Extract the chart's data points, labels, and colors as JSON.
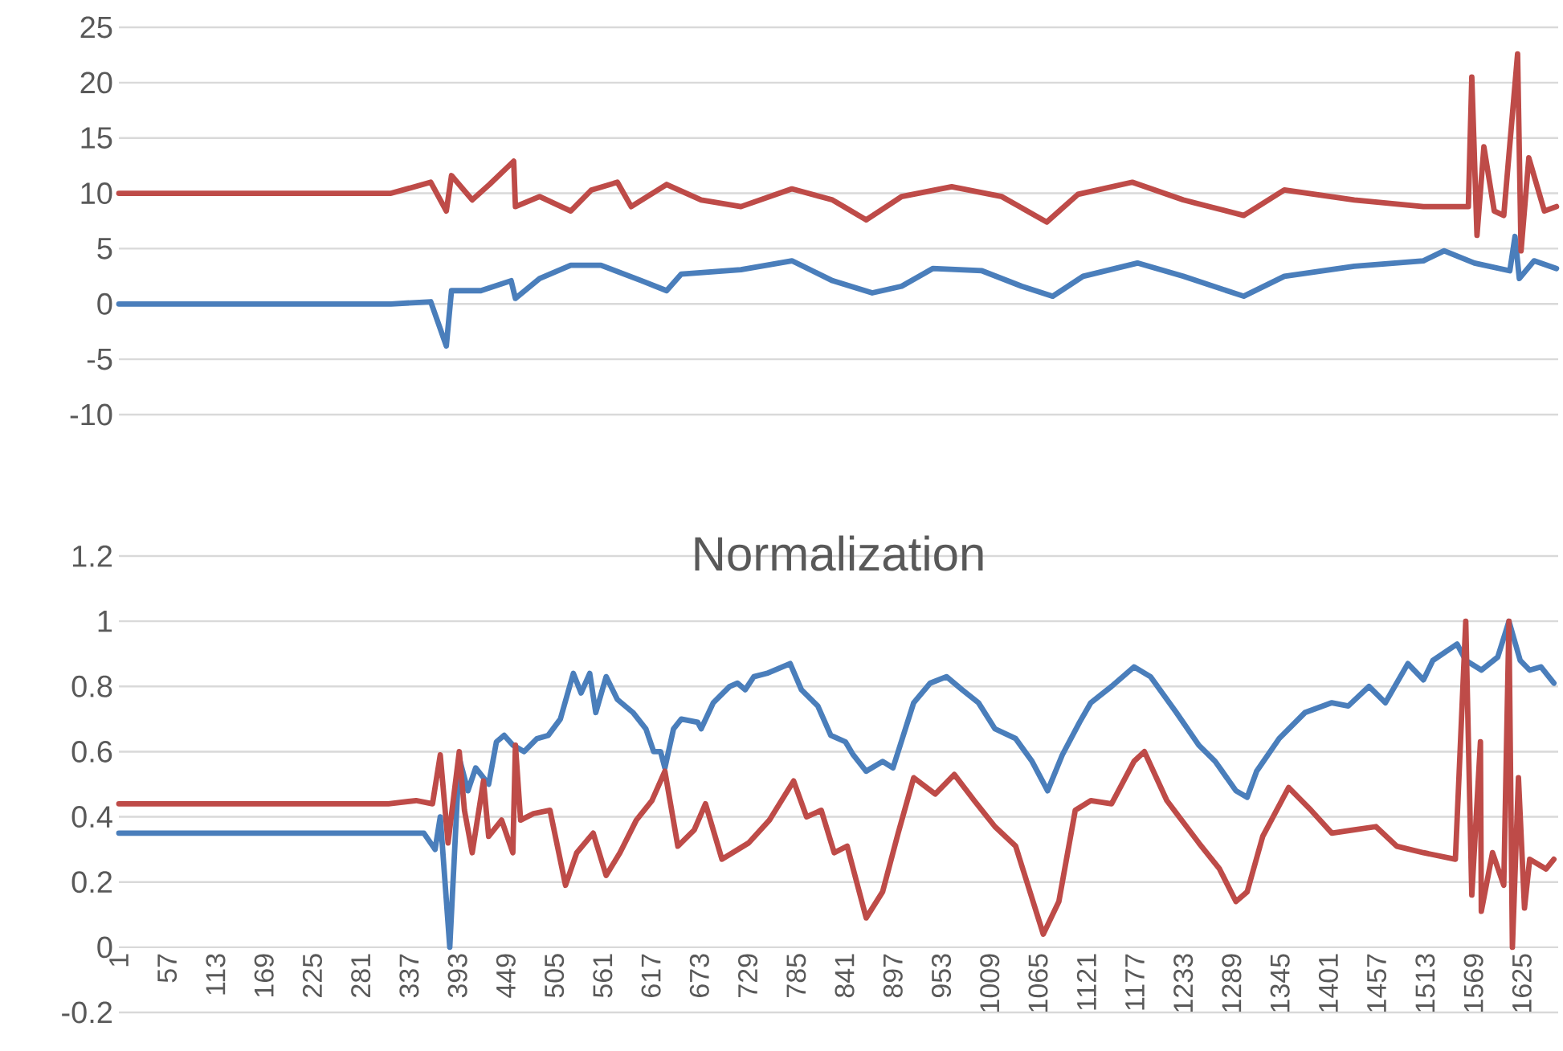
{
  "chart_data": [
    {
      "type": "line",
      "xlim": [
        1,
        1667
      ],
      "ylim": [
        -10,
        25
      ],
      "yticks": [
        -10,
        -5,
        0,
        5,
        10,
        15,
        20,
        25
      ],
      "grid": "y",
      "tick_labels": "y",
      "series": [
        {
          "color": "#4a7ebb",
          "x": [
            1,
            316,
            362,
            380,
            386,
            420,
            455,
            460,
            488,
            524,
            559,
            606,
            635,
            652,
            721,
            780,
            827,
            873,
            907,
            943,
            1000,
            1046,
            1082,
            1117,
            1180,
            1233,
            1303,
            1350,
            1431,
            1511,
            1535,
            1570,
            1611,
            1617,
            1622,
            1639,
            1665
          ],
          "values": [
            0,
            0,
            0.2,
            -3.8,
            1.2,
            1.2,
            2.1,
            0.5,
            2.3,
            3.5,
            3.5,
            2.1,
            1.2,
            2.7,
            3.1,
            3.9,
            2.1,
            1,
            1.6,
            3.2,
            3,
            1.6,
            0.7,
            2.5,
            3.7,
            2.5,
            0.7,
            2.5,
            3.4,
            3.9,
            4.8,
            3.7,
            3,
            6.1,
            2.3,
            3.9,
            3.2
          ]
        },
        {
          "color": "#be4b48",
          "x": [
            1,
            316,
            362,
            380,
            386,
            410,
            430,
            458,
            460,
            488,
            524,
            548,
            578,
            594,
            635,
            675,
            721,
            780,
            827,
            866,
            907,
            965,
            1023,
            1075,
            1111,
            1174,
            1233,
            1303,
            1350,
            1431,
            1511,
            1563,
            1567,
            1573,
            1581,
            1593,
            1604,
            1620,
            1624,
            1633,
            1651,
            1665
          ],
          "values": [
            10,
            10,
            11,
            8.4,
            11.6,
            9.4,
            10.8,
            12.9,
            8.8,
            9.7,
            8.4,
            10.3,
            11,
            8.8,
            10.8,
            9.4,
            8.8,
            10.4,
            9.4,
            7.6,
            9.7,
            10.6,
            9.7,
            7.4,
            9.9,
            11,
            9.4,
            8,
            10.3,
            9.4,
            8.8,
            8.8,
            20.5,
            6.2,
            14.2,
            8.4,
            8,
            22.6,
            4.8,
            13.2,
            8.4,
            8.8
          ]
        }
      ]
    },
    {
      "type": "line",
      "title": "Normalization",
      "xlim": [
        1,
        1667
      ],
      "xticks": [
        1,
        57,
        113,
        169,
        225,
        281,
        337,
        393,
        449,
        505,
        561,
        617,
        673,
        729,
        785,
        841,
        897,
        953,
        1009,
        1065,
        1121,
        1177,
        1233,
        1289,
        1345,
        1401,
        1457,
        1513,
        1569,
        1625
      ],
      "ylim": [
        -0.2,
        1.2
      ],
      "yticks": [
        -0.2,
        0,
        0.2,
        0.4,
        0.6,
        0.8,
        1,
        1.2
      ],
      "grid": "y",
      "series": [
        {
          "color": "#4a7ebb",
          "x": [
            1,
            317,
            354,
            367,
            373,
            384,
            395,
            405,
            414,
            429,
            438,
            447,
            457,
            470,
            485,
            498,
            512,
            527,
            536,
            546,
            553,
            565,
            578,
            596,
            611,
            620,
            628,
            633,
            643,
            652,
            671,
            675,
            689,
            708,
            717,
            726,
            736,
            751,
            778,
            791,
            810,
            825,
            842,
            851,
            866,
            885,
            897,
            921,
            940,
            959,
            977,
            996,
            1015,
            1039,
            1058,
            1076,
            1093,
            1113,
            1126,
            1150,
            1176,
            1195,
            1225,
            1251,
            1270,
            1294,
            1307,
            1318,
            1344,
            1374,
            1405,
            1424,
            1448,
            1467,
            1493,
            1511,
            1522,
            1550,
            1560,
            1578,
            1597,
            1610,
            1623,
            1634,
            1647,
            1662
          ],
          "values": [
            0.35,
            0.35,
            0.35,
            0.3,
            0.4,
            0,
            0.58,
            0.48,
            0.55,
            0.5,
            0.63,
            0.65,
            0.62,
            0.6,
            0.64,
            0.65,
            0.7,
            0.84,
            0.78,
            0.84,
            0.72,
            0.83,
            0.76,
            0.72,
            0.67,
            0.6,
            0.6,
            0.55,
            0.67,
            0.7,
            0.69,
            0.67,
            0.75,
            0.8,
            0.81,
            0.79,
            0.83,
            0.84,
            0.87,
            0.79,
            0.74,
            0.65,
            0.63,
            0.59,
            0.54,
            0.57,
            0.55,
            0.75,
            0.81,
            0.83,
            0.79,
            0.75,
            0.67,
            0.64,
            0.57,
            0.48,
            0.59,
            0.69,
            0.75,
            0.8,
            0.86,
            0.83,
            0.72,
            0.62,
            0.57,
            0.48,
            0.46,
            0.54,
            0.64,
            0.72,
            0.75,
            0.74,
            0.8,
            0.75,
            0.87,
            0.82,
            0.88,
            0.93,
            0.88,
            0.85,
            0.89,
            1,
            0.88,
            0.85,
            0.86,
            0.81
          ]
        },
        {
          "color": "#be4b48",
          "x": [
            1,
            313,
            345,
            364,
            373,
            382,
            395,
            401,
            410,
            423,
            429,
            444,
            457,
            460,
            466,
            481,
            500,
            518,
            531,
            550,
            565,
            581,
            600,
            618,
            633,
            648,
            667,
            680,
            699,
            730,
            754,
            782,
            797,
            814,
            829,
            844,
            866,
            885,
            903,
            921,
            946,
            968,
            991,
            1015,
            1039,
            1071,
            1089,
            1108,
            1126,
            1150,
            1176,
            1188,
            1214,
            1251,
            1275,
            1294,
            1307,
            1325,
            1355,
            1381,
            1405,
            1430,
            1456,
            1480,
            1511,
            1548,
            1560,
            1567,
            1577,
            1578,
            1591,
            1604,
            1610,
            1614,
            1621,
            1628,
            1634,
            1653,
            1662
          ],
          "values": [
            0.44,
            0.44,
            0.45,
            0.44,
            0.59,
            0.32,
            0.6,
            0.42,
            0.29,
            0.51,
            0.34,
            0.39,
            0.29,
            0.62,
            0.39,
            0.41,
            0.42,
            0.19,
            0.29,
            0.35,
            0.22,
            0.29,
            0.39,
            0.45,
            0.54,
            0.31,
            0.36,
            0.44,
            0.27,
            0.32,
            0.39,
            0.51,
            0.4,
            0.42,
            0.29,
            0.31,
            0.09,
            0.17,
            0.35,
            0.52,
            0.47,
            0.53,
            0.45,
            0.37,
            0.31,
            0.04,
            0.14,
            0.42,
            0.45,
            0.44,
            0.57,
            0.6,
            0.45,
            0.32,
            0.24,
            0.14,
            0.17,
            0.34,
            0.49,
            0.42,
            0.35,
            0.36,
            0.37,
            0.31,
            0.29,
            0.27,
            1,
            0.16,
            0.63,
            0.11,
            0.29,
            0.19,
            1,
            0,
            0.52,
            0.12,
            0.27,
            0.24,
            0.27
          ]
        }
      ]
    }
  ]
}
